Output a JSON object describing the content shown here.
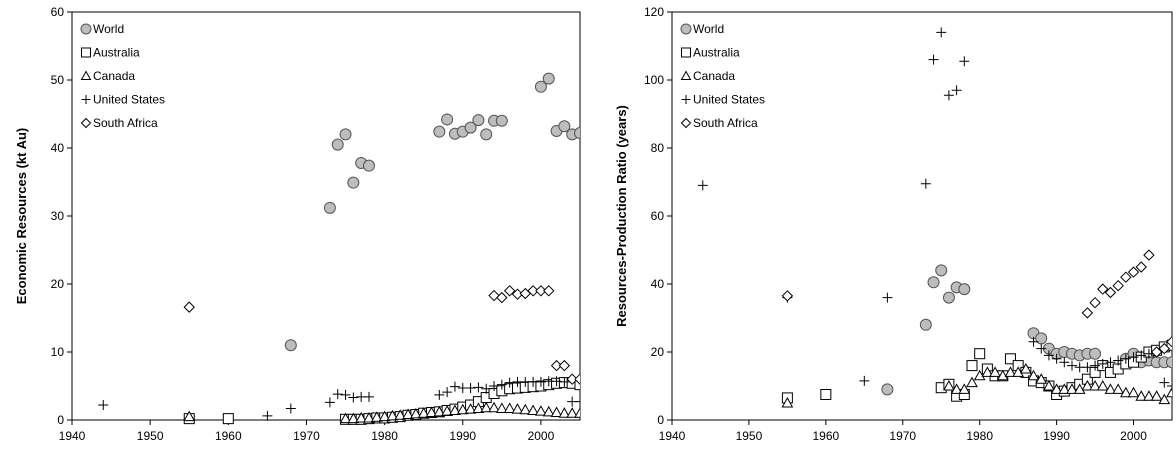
{
  "chart_data": [
    {
      "type": "scatter",
      "title": "",
      "xlabel": "",
      "ylabel": "Economic Resources (kt Au)",
      "xlim": [
        1940,
        2005
      ],
      "ylim": [
        0,
        60
      ],
      "xticks": [
        "1940",
        "1950",
        "1960",
        "1970",
        "1980",
        "1990",
        "2000"
      ],
      "yticks": [
        "0",
        "10",
        "20",
        "30",
        "40",
        "50",
        "60"
      ],
      "grid": false,
      "legend_position": "top-left",
      "series": [
        {
          "name": "World",
          "marker": "circle",
          "points": [
            [
              1968,
              11
            ],
            [
              1973,
              31.2
            ],
            [
              1974,
              40.5
            ],
            [
              1975,
              42
            ],
            [
              1976,
              34.9
            ],
            [
              1977,
              37.8
            ],
            [
              1978,
              37.4
            ],
            [
              1987,
              42.4
            ],
            [
              1988,
              44.2
            ],
            [
              1989,
              42.1
            ],
            [
              1990,
              42.4
            ],
            [
              1991,
              43
            ],
            [
              1992,
              44.1
            ],
            [
              1993,
              42
            ],
            [
              1994,
              44
            ],
            [
              1995,
              44
            ],
            [
              2000,
              49
            ],
            [
              2001,
              50.2
            ],
            [
              2002,
              42.5
            ],
            [
              2003,
              43.2
            ],
            [
              2004,
              42
            ],
            [
              2005,
              42.2
            ]
          ]
        },
        {
          "name": "Australia",
          "marker": "square",
          "points": [
            [
              1955,
              0.2
            ],
            [
              1960,
              0.2
            ],
            [
              1975,
              0.1
            ],
            [
              1976,
              0.1
            ],
            [
              1977,
              0.1
            ],
            [
              1978,
              0.2
            ],
            [
              1979,
              0.3
            ],
            [
              1980,
              0.3
            ],
            [
              1981,
              0.4
            ],
            [
              1982,
              0.5
            ],
            [
              1983,
              0.7
            ],
            [
              1984,
              0.8
            ],
            [
              1985,
              1
            ],
            [
              1986,
              1.1
            ],
            [
              1987,
              1.2
            ],
            [
              1988,
              1.4
            ],
            [
              1989,
              1.6
            ],
            [
              1990,
              1.9
            ],
            [
              1991,
              2.2
            ],
            [
              1992,
              2.7
            ],
            [
              1993,
              3.3
            ],
            [
              1994,
              3.9
            ],
            [
              1995,
              4.3
            ],
            [
              1996,
              4.6
            ],
            [
              1997,
              4.7
            ],
            [
              1998,
              4.8
            ],
            [
              1999,
              4.9
            ],
            [
              2000,
              5.0
            ],
            [
              2001,
              5.2
            ],
            [
              2002,
              5.4
            ],
            [
              2003,
              5.5
            ],
            [
              2004,
              5.4
            ],
            [
              2005,
              5.2
            ]
          ]
        },
        {
          "name": "Canada",
          "marker": "triangle",
          "points": [
            [
              1955,
              0.5
            ],
            [
              1975,
              0.2
            ],
            [
              1976,
              0.2
            ],
            [
              1977,
              0.3
            ],
            [
              1978,
              0.3
            ],
            [
              1979,
              0.4
            ],
            [
              1980,
              0.5
            ],
            [
              1981,
              0.6
            ],
            [
              1982,
              0.7
            ],
            [
              1983,
              0.8
            ],
            [
              1984,
              0.9
            ],
            [
              1985,
              1.0
            ],
            [
              1986,
              1.1
            ],
            [
              1987,
              1.2
            ],
            [
              1988,
              1.3
            ],
            [
              1989,
              1.4
            ],
            [
              1990,
              1.5
            ],
            [
              1991,
              1.6
            ],
            [
              1992,
              1.7
            ],
            [
              1993,
              1.8
            ],
            [
              1994,
              1.8
            ],
            [
              1995,
              1.7
            ],
            [
              1996,
              1.7
            ],
            [
              1997,
              1.6
            ],
            [
              1998,
              1.5
            ],
            [
              1999,
              1.4
            ],
            [
              2000,
              1.3
            ],
            [
              2001,
              1.2
            ],
            [
              2002,
              1.1
            ],
            [
              2003,
              1.0
            ],
            [
              2004,
              1.0
            ],
            [
              2005,
              1.0
            ]
          ]
        },
        {
          "name": "United States",
          "marker": "plus",
          "points": [
            [
              1944,
              2.2
            ],
            [
              1965,
              0.6
            ],
            [
              1968,
              1.7
            ],
            [
              1973,
              2.6
            ],
            [
              1974,
              3.8
            ],
            [
              1975,
              3.7
            ],
            [
              1976,
              3.3
            ],
            [
              1977,
              3.4
            ],
            [
              1978,
              3.4
            ],
            [
              1987,
              3.7
            ],
            [
              1988,
              4.1
            ],
            [
              1989,
              4.9
            ],
            [
              1990,
              4.7
            ],
            [
              1991,
              4.7
            ],
            [
              1992,
              4.8
            ],
            [
              1993,
              4.6
            ],
            [
              1994,
              5.0
            ],
            [
              1995,
              5.2
            ],
            [
              1996,
              5.5
            ],
            [
              1997,
              5.6
            ],
            [
              1998,
              5.6
            ],
            [
              1999,
              5.6
            ],
            [
              2000,
              5.6
            ],
            [
              2001,
              5.7
            ],
            [
              2002,
              5.7
            ],
            [
              2003,
              5.6
            ],
            [
              2004,
              2.7
            ],
            [
              2005,
              2.7
            ]
          ]
        },
        {
          "name": "South Africa",
          "marker": "diamond",
          "points": [
            [
              1955,
              16.6
            ],
            [
              1994,
              18.3
            ],
            [
              1995,
              18
            ],
            [
              1996,
              19
            ],
            [
              1997,
              18.5
            ],
            [
              1998,
              18.6
            ],
            [
              1999,
              19
            ],
            [
              2000,
              19
            ],
            [
              2001,
              19
            ],
            [
              2002,
              8
            ],
            [
              2003,
              8
            ],
            [
              2004,
              6
            ],
            [
              2005,
              6
            ]
          ]
        }
      ]
    },
    {
      "type": "scatter",
      "title": "",
      "xlabel": "",
      "ylabel": "Resources-Production Ratio (years)",
      "xlim": [
        1940,
        2005
      ],
      "ylim": [
        0,
        120
      ],
      "xticks": [
        "1940",
        "1950",
        "1960",
        "1970",
        "1980",
        "1990",
        "2000"
      ],
      "yticks": [
        "0",
        "20",
        "40",
        "60",
        "80",
        "100",
        "120"
      ],
      "grid": false,
      "legend_position": "top-left",
      "series": [
        {
          "name": "World",
          "marker": "circle",
          "points": [
            [
              1968,
              9
            ],
            [
              1973,
              28
            ],
            [
              1974,
              40.5
            ],
            [
              1975,
              44
            ],
            [
              1976,
              36
            ],
            [
              1977,
              39
            ],
            [
              1978,
              38.5
            ],
            [
              1987,
              25.5
            ],
            [
              1988,
              24
            ],
            [
              1989,
              21
            ],
            [
              1990,
              19.5
            ],
            [
              1991,
              20
            ],
            [
              1992,
              19.5
            ],
            [
              1993,
              19
            ],
            [
              1994,
              19.5
            ],
            [
              1995,
              19.5
            ],
            [
              1999,
              18
            ],
            [
              2000,
              19.5
            ],
            [
              2001,
              17
            ],
            [
              2002,
              17.5
            ],
            [
              2003,
              17
            ],
            [
              2004,
              17
            ],
            [
              2005,
              17
            ]
          ]
        },
        {
          "name": "Australia",
          "marker": "square",
          "points": [
            [
              1955,
              6.5
            ],
            [
              1960,
              7.5
            ],
            [
              1975,
              9.5
            ],
            [
              1976,
              10.5
            ],
            [
              1977,
              7
            ],
            [
              1978,
              7.5
            ],
            [
              1979,
              16
            ],
            [
              1980,
              19.5
            ],
            [
              1981,
              15
            ],
            [
              1982,
              13
            ],
            [
              1983,
              13
            ],
            [
              1984,
              18
            ],
            [
              1985,
              16
            ],
            [
              1986,
              14
            ],
            [
              1987,
              11.5
            ],
            [
              1988,
              11
            ],
            [
              1989,
              10
            ],
            [
              1990,
              7.5
            ],
            [
              1991,
              8.5
            ],
            [
              1992,
              9.5
            ],
            [
              1993,
              10.5
            ],
            [
              1994,
              12
            ],
            [
              1995,
              14
            ],
            [
              1996,
              16
            ],
            [
              1997,
              14
            ],
            [
              1998,
              15
            ],
            [
              1999,
              16.5
            ],
            [
              2000,
              17
            ],
            [
              2001,
              18.5
            ],
            [
              2002,
              20
            ],
            [
              2003,
              20.5
            ],
            [
              2004,
              21.5
            ],
            [
              2005,
              22
            ]
          ]
        },
        {
          "name": "Canada",
          "marker": "triangle",
          "points": [
            [
              1955,
              5
            ],
            [
              1976,
              10
            ],
            [
              1977,
              9
            ],
            [
              1978,
              9
            ],
            [
              1979,
              11
            ],
            [
              1980,
              13
            ],
            [
              1981,
              14
            ],
            [
              1982,
              14
            ],
            [
              1983,
              13
            ],
            [
              1984,
              14
            ],
            [
              1985,
              14
            ],
            [
              1986,
              15
            ],
            [
              1987,
              13
            ],
            [
              1988,
              12
            ],
            [
              1989,
              10
            ],
            [
              1990,
              9
            ],
            [
              1991,
              9
            ],
            [
              1992,
              9
            ],
            [
              1993,
              9
            ],
            [
              1994,
              10
            ],
            [
              1995,
              10
            ],
            [
              1996,
              10
            ],
            [
              1997,
              9
            ],
            [
              1998,
              9
            ],
            [
              1999,
              8
            ],
            [
              2000,
              8
            ],
            [
              2001,
              7
            ],
            [
              2002,
              7
            ],
            [
              2003,
              7
            ],
            [
              2004,
              6
            ],
            [
              2005,
              8
            ]
          ]
        },
        {
          "name": "United States",
          "marker": "plus",
          "points": [
            [
              1944,
              69
            ],
            [
              1955,
              36
            ],
            [
              1965,
              11.5
            ],
            [
              1968,
              36
            ],
            [
              1973,
              69.5
            ],
            [
              1974,
              106
            ],
            [
              1975,
              114
            ],
            [
              1976,
              95.5
            ],
            [
              1977,
              97
            ],
            [
              1978,
              105.5
            ],
            [
              1987,
              23
            ],
            [
              1988,
              21
            ],
            [
              1989,
              19
            ],
            [
              1990,
              18
            ],
            [
              1991,
              17
            ],
            [
              1992,
              16
            ],
            [
              1993,
              15.5
            ],
            [
              1994,
              15.5
            ],
            [
              1995,
              16
            ],
            [
              1996,
              16.5
            ],
            [
              1997,
              17
            ],
            [
              1998,
              17.5
            ],
            [
              1999,
              18
            ],
            [
              2000,
              18.5
            ],
            [
              2001,
              19
            ],
            [
              2002,
              19.5
            ],
            [
              2003,
              20
            ],
            [
              2004,
              11
            ],
            [
              2005,
              10
            ]
          ]
        },
        {
          "name": "South Africa",
          "marker": "diamond",
          "points": [
            [
              1955,
              36.5
            ],
            [
              1994,
              31.5
            ],
            [
              1995,
              34.5
            ],
            [
              1996,
              38.5
            ],
            [
              1997,
              37.5
            ],
            [
              1998,
              39.5
            ],
            [
              1999,
              42
            ],
            [
              2000,
              43.5
            ],
            [
              2001,
              45
            ],
            [
              2002,
              48.5
            ],
            [
              2003,
              20
            ],
            [
              2004,
              21
            ],
            [
              2005,
              23
            ]
          ]
        }
      ]
    }
  ]
}
